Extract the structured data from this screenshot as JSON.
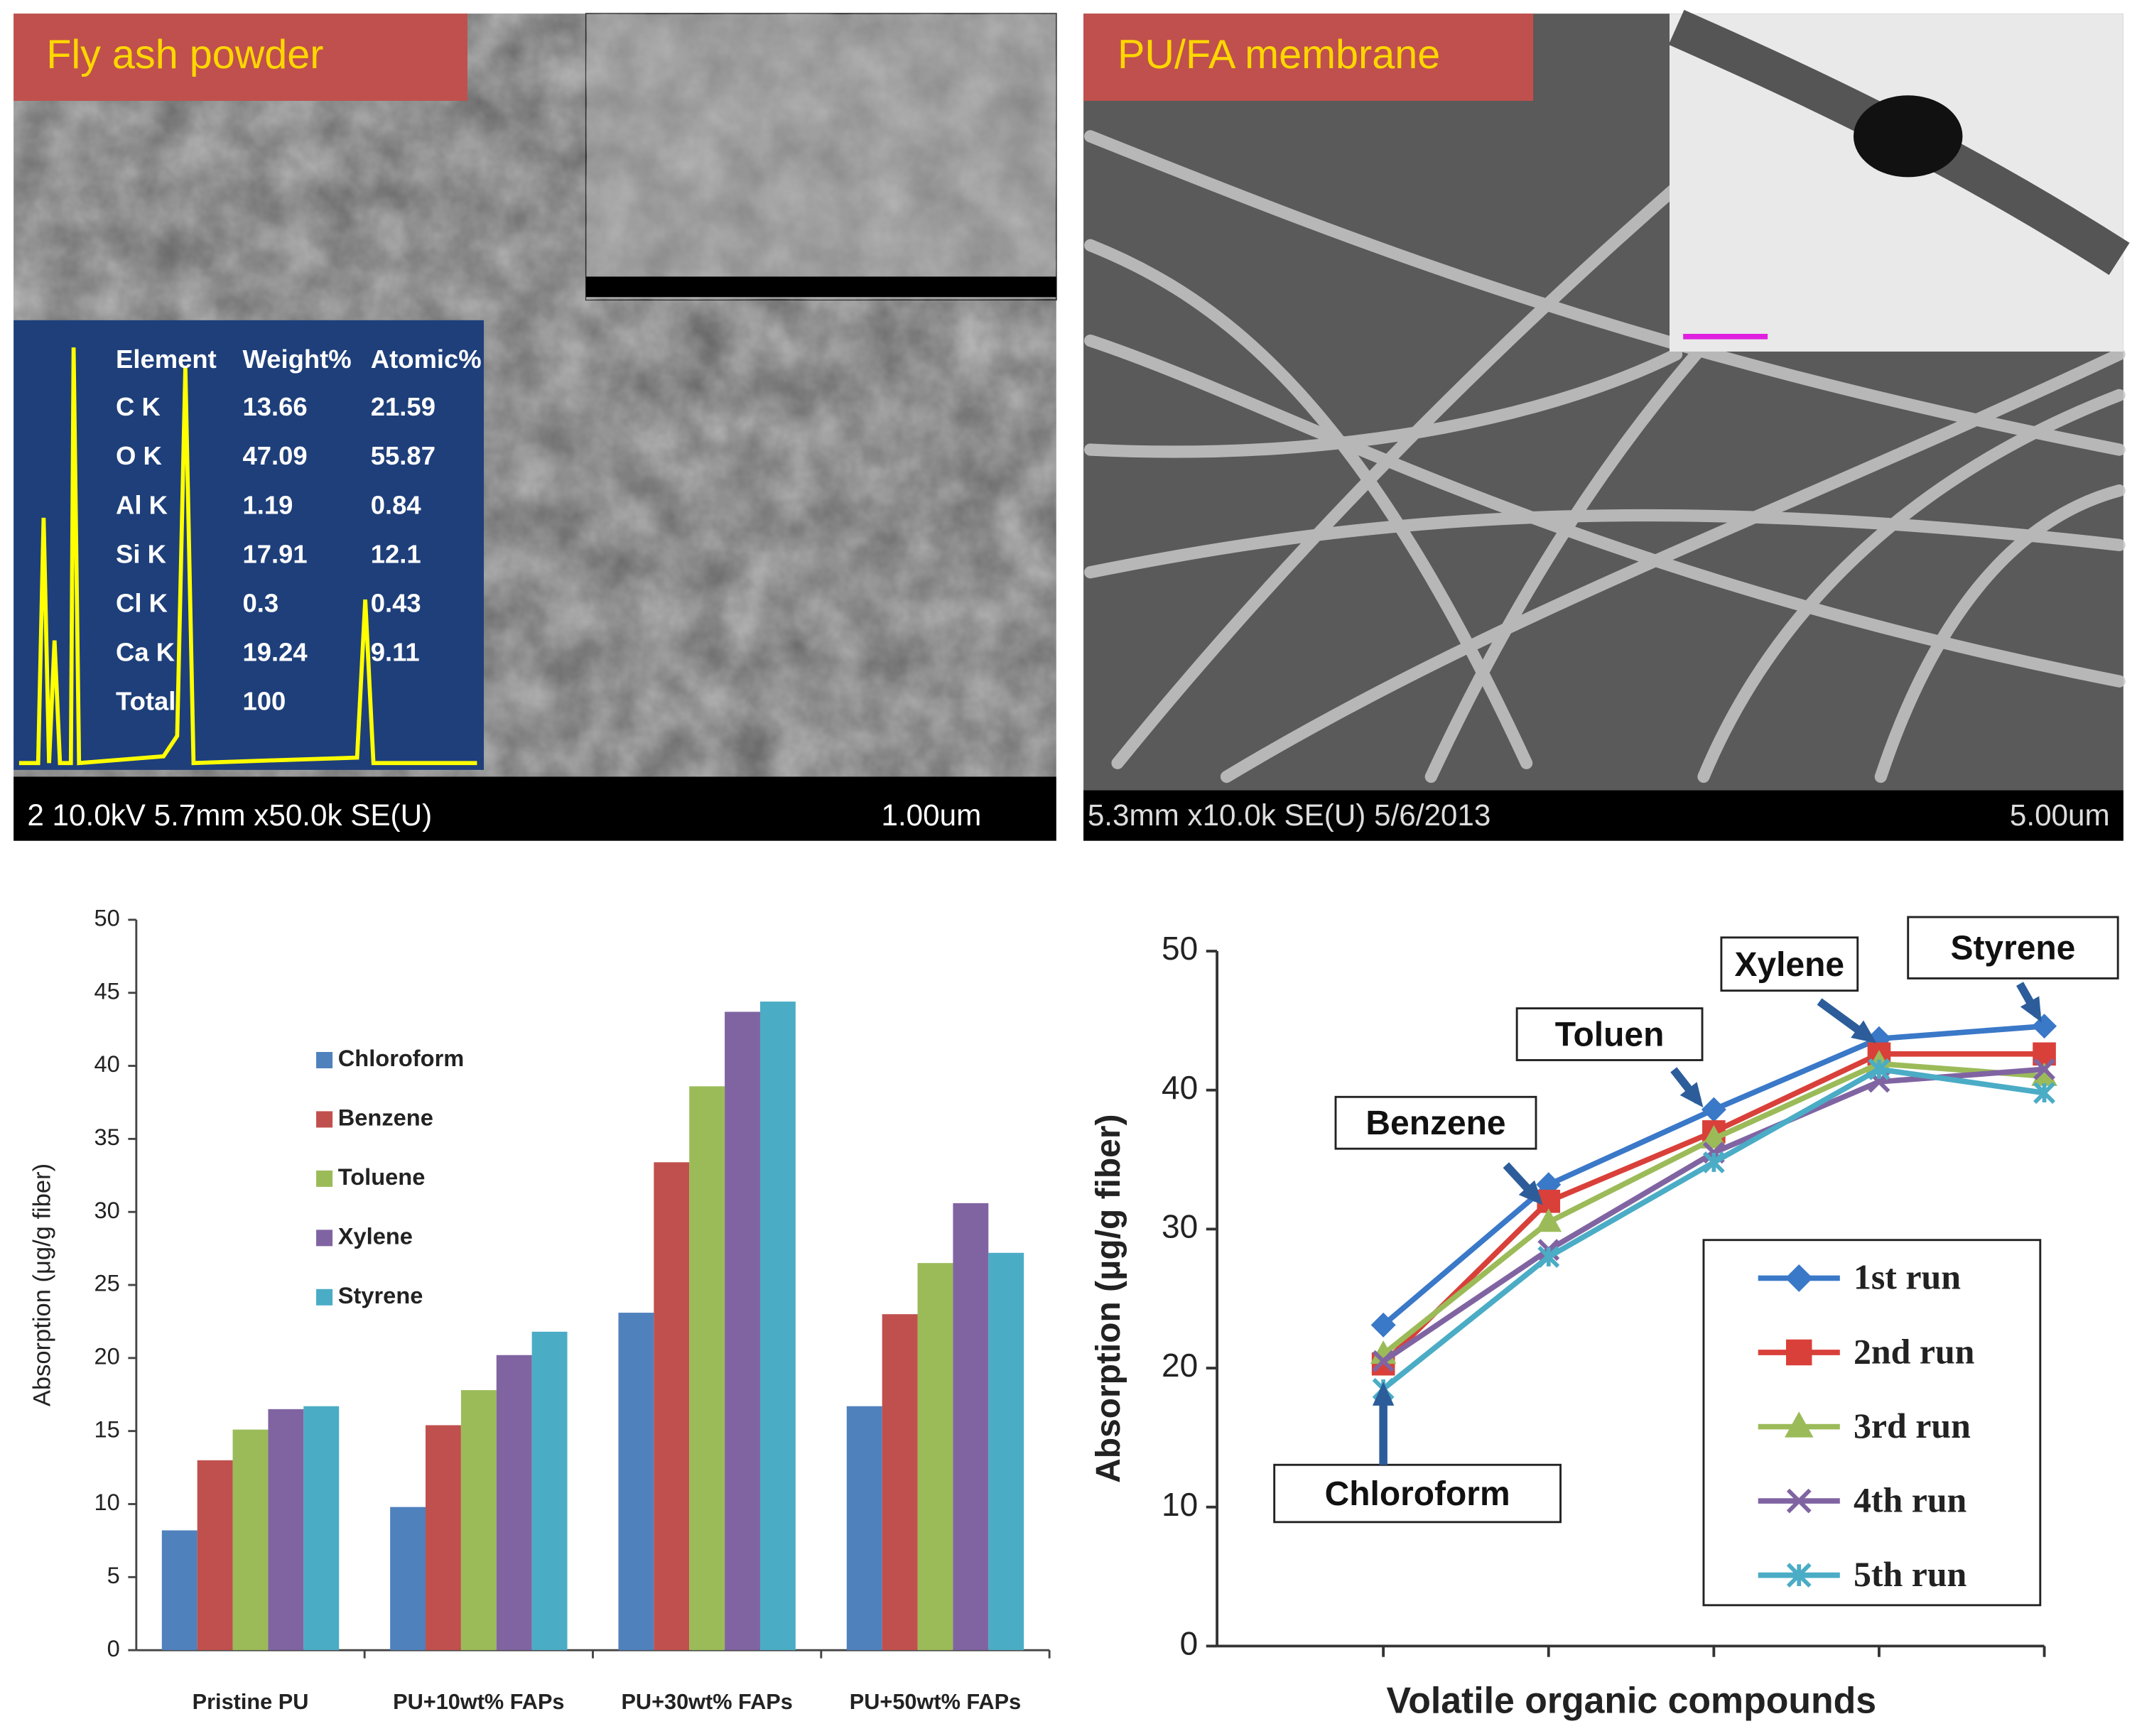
{
  "panels": [
    {
      "label": "Fly ash powder",
      "footer": "2 10.0kV 5.7mm x50.0k SE(U)",
      "scale": "1.00um",
      "eds": {
        "header": [
          "Element",
          "Weight%",
          "Atomic%"
        ],
        "rows": [
          [
            "C K",
            "13.66",
            "21.59"
          ],
          [
            "O K",
            "47.09",
            "55.87"
          ],
          [
            "Al K",
            "1.19",
            "0.84"
          ],
          [
            "Si K",
            "17.91",
            "12.1"
          ],
          [
            "Cl K",
            "0.3",
            "0.43"
          ],
          [
            "Ca K",
            "19.24",
            "9.11"
          ],
          [
            "Total",
            "100",
            ""
          ]
        ]
      }
    },
    {
      "label": "PU/FA membrane",
      "footer": "5.3mm x10.0k SE(U) 5/6/2013",
      "scale": "5.00um"
    }
  ],
  "chart_data": [
    {
      "type": "bar",
      "ylabel": "Absorption (μg/g fiber)",
      "categories": [
        "Pristine PU",
        "PU+10wt% FAPs",
        "PU+30wt% FAPs",
        "PU+50wt% FAPs"
      ],
      "series": [
        {
          "name": "Chloroform",
          "color": "#4f81bd",
          "values": [
            8.2,
            9.8,
            23.1,
            16.7
          ]
        },
        {
          "name": "Benzene",
          "color": "#c0504d",
          "values": [
            13.0,
            15.4,
            33.4,
            23.0
          ]
        },
        {
          "name": "Toluene",
          "color": "#9bbb59",
          "values": [
            15.1,
            17.8,
            38.6,
            26.5
          ]
        },
        {
          "name": "Xylene",
          "color": "#8064a2",
          "values": [
            16.5,
            20.2,
            43.7,
            30.6
          ]
        },
        {
          "name": "Styrene",
          "color": "#4bacc6",
          "values": [
            16.7,
            21.8,
            44.4,
            27.2
          ]
        }
      ],
      "ylim": [
        0,
        50
      ],
      "yticks": [
        0,
        5,
        10,
        15,
        20,
        25,
        30,
        35,
        40,
        45,
        50
      ],
      "legend": "left"
    },
    {
      "type": "line",
      "xlabel": "Volatile organic compounds",
      "ylabel": "Absorption (μg/g fiber)",
      "categories": [
        null,
        null,
        null,
        null,
        null
      ],
      "annotations": [
        "Chloroform",
        "Benzene",
        "Toluen",
        "Xylene",
        "Styrene"
      ],
      "series": [
        {
          "name": "1st run",
          "color": "#3a78c8",
          "marker": "diamond",
          "values": [
            23.1,
            33.2,
            38.6,
            43.7,
            44.6
          ]
        },
        {
          "name": "2nd run",
          "color": "#d9403a",
          "marker": "square",
          "values": [
            20.3,
            32.0,
            37.0,
            42.6,
            42.6
          ]
        },
        {
          "name": "3rd run",
          "color": "#9bbb59",
          "marker": "triangle",
          "values": [
            21.0,
            30.5,
            36.5,
            41.9,
            41.0
          ]
        },
        {
          "name": "4th run",
          "color": "#8064a2",
          "marker": "x",
          "values": [
            20.5,
            28.5,
            35.5,
            40.6,
            41.5
          ]
        },
        {
          "name": "5th run",
          "color": "#4bacc6",
          "marker": "star",
          "values": [
            18.5,
            28.0,
            34.8,
            41.5,
            39.8
          ]
        }
      ],
      "ylim": [
        0,
        50
      ],
      "yticks": [
        0,
        10,
        20,
        30,
        40,
        50
      ],
      "legend": "lower-right"
    }
  ]
}
